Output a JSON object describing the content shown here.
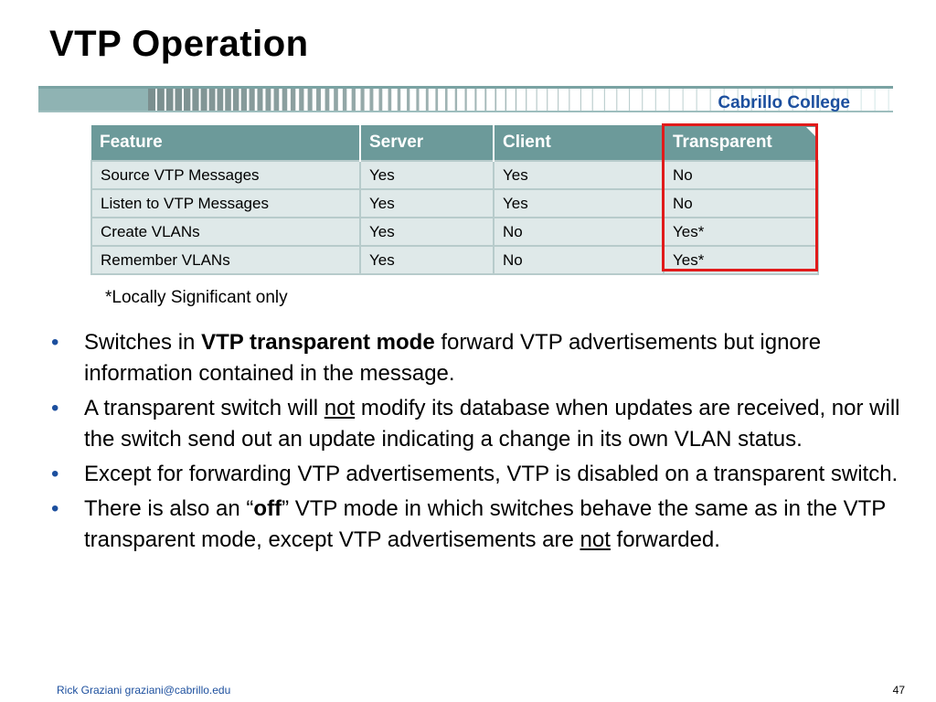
{
  "slide": {
    "title": "VTP Operation",
    "brand": "Cabrillo College"
  },
  "table": {
    "headers": [
      "Feature",
      "Server",
      "Client",
      "Transparent"
    ],
    "rows": [
      [
        "Source VTP Messages",
        "Yes",
        "Yes",
        "No"
      ],
      [
        "Listen to VTP Messages",
        "Yes",
        "Yes",
        "No"
      ],
      [
        "Create VLANs",
        "Yes",
        "No",
        "Yes*"
      ],
      [
        "Remember VLANs",
        "Yes",
        "No",
        "Yes*"
      ]
    ],
    "footnote": "*Locally Significant only",
    "highlight_color": "#e11b1b",
    "header_color": "#6c9a9a",
    "cell_color": "#dfe9e9"
  },
  "bullets": [
    {
      "pre": "Switches in ",
      "bold": "VTP transparent mode",
      "post": " forward VTP advertisements but ignore information contained in the message."
    },
    {
      "pre": "A transparent switch will ",
      "underline": "not",
      "post": " modify its database when updates are received, nor will the switch send out an update indicating a change in its own VLAN status."
    },
    {
      "text": "Except for forwarding VTP advertisements, VTP is disabled on a transparent switch."
    },
    {
      "pre": "There is also an “",
      "bold": "off",
      "mid": "” VTP mode in which switches behave the same as in the VTP transparent mode, except VTP advertisements are ",
      "underline": "not",
      "post": " forwarded."
    }
  ],
  "bullet_glyph": "•",
  "footer": {
    "author": "Rick Graziani  graziani@cabrillo.edu",
    "page": "47"
  }
}
